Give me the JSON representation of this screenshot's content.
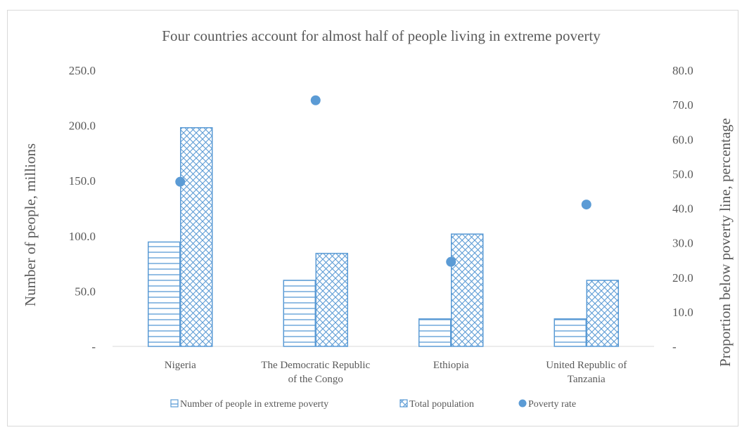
{
  "chart_data": {
    "type": "bar",
    "title": "Four countries account for almost half of people living in extreme poverty",
    "categories": [
      [
        "Nigeria"
      ],
      [
        "The Democratic Republic",
        "of the Congo"
      ],
      [
        "Ethiopia"
      ],
      [
        "United Republic of",
        "Tanzania"
      ]
    ],
    "series": [
      {
        "name": "Number of people in extreme poverty",
        "type": "bar",
        "axis": "left",
        "pattern": "horizontal-stripes",
        "values": [
          94.5,
          59.8,
          24.9,
          24.9
        ]
      },
      {
        "name": "Total population",
        "type": "bar",
        "axis": "left",
        "pattern": "crosshatch",
        "values": [
          198.0,
          84.2,
          101.7,
          59.8
        ]
      },
      {
        "name": "Poverty rate",
        "type": "scatter",
        "axis": "right",
        "values": [
          47.7,
          71.3,
          24.5,
          41.1
        ]
      }
    ],
    "ylabel": "Number of people, millions",
    "y2label": "Proportion below poverty line, percentage",
    "ylim": [
      0,
      250
    ],
    "y2lim": [
      0,
      80
    ],
    "yticks": [
      "-",
      "50.0",
      "100.0",
      "150.0",
      "200.0",
      "250.0"
    ],
    "y2ticks": [
      "-",
      "10.0",
      "20.0",
      "30.0",
      "40.0",
      "50.0",
      "60.0",
      "70.0",
      "80.0"
    ],
    "grid": false,
    "legend_position": "bottom",
    "colors": {
      "series": "#5b9bd5",
      "axis": "#d9d9d9",
      "text": "#595959"
    }
  }
}
